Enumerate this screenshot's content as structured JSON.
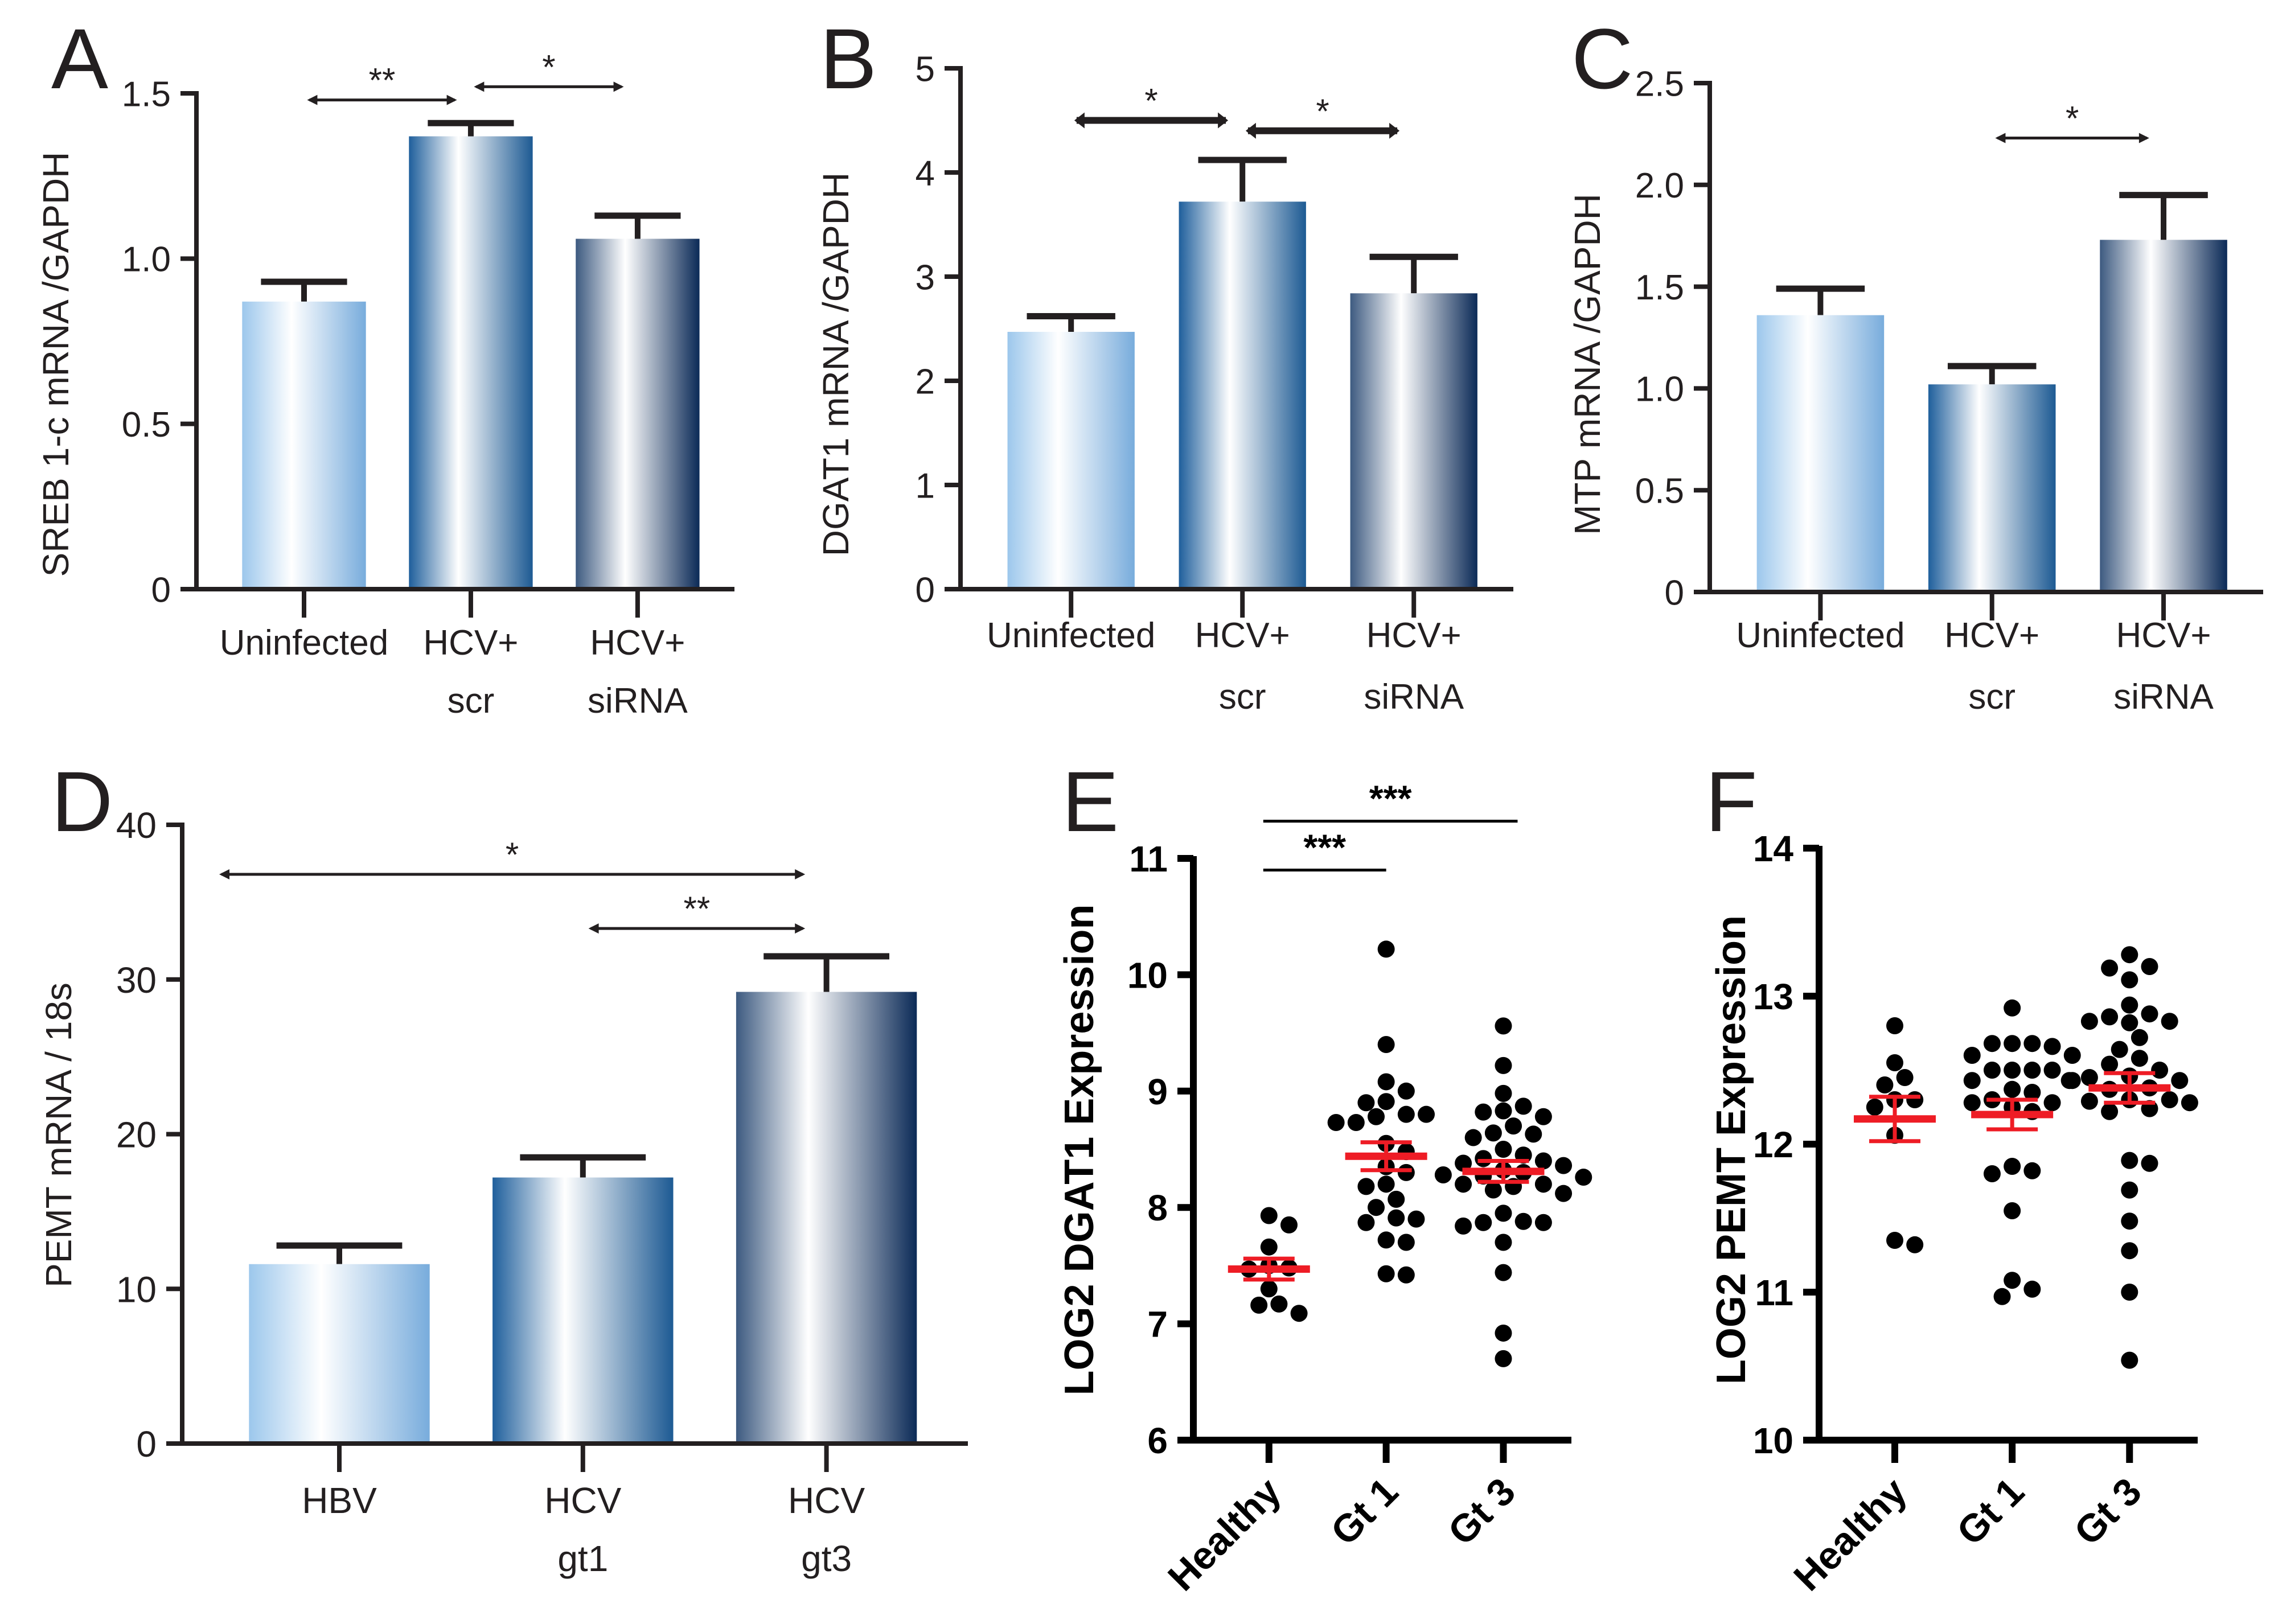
{
  "chart_data": [
    {
      "panel": "A",
      "type": "bar",
      "ylabel": "SREB 1-c mRNA /GAPDH",
      "categories": [
        [
          "Uninfected"
        ],
        [
          "HCV+",
          "scr"
        ],
        [
          "HCV+",
          "siRNA"
        ]
      ],
      "values": [
        0.87,
        1.37,
        1.06
      ],
      "errors": [
        0.06,
        0.04,
        0.07
      ],
      "ylim": [
        0,
        1.5
      ],
      "yticks": [
        0,
        0.5,
        1.0,
        1.5
      ],
      "ytick_labels": [
        "0",
        "0.5",
        "1.0",
        "1.5"
      ],
      "significance": [
        {
          "from": 0,
          "to": 1,
          "label": "**",
          "level": 1.48
        },
        {
          "from": 1,
          "to": 2,
          "label": "*",
          "level": 1.52
        }
      ]
    },
    {
      "panel": "B",
      "type": "bar",
      "ylabel": "DGAT1 mRNA /GAPDH",
      "categories": [
        [
          "Uninfected"
        ],
        [
          "HCV+",
          "scr"
        ],
        [
          "HCV+",
          "siRNA"
        ]
      ],
      "values": [
        2.47,
        3.72,
        2.84
      ],
      "errors": [
        0.15,
        0.4,
        0.35
      ],
      "ylim": [
        0,
        5
      ],
      "yticks": [
        0,
        1,
        2,
        3,
        4,
        5
      ],
      "ytick_labels": [
        "0",
        "1",
        "2",
        "3",
        "4",
        "5"
      ],
      "significance": [
        {
          "from": 0,
          "to": 1,
          "label": "*",
          "level": 4.5
        },
        {
          "from": 1,
          "to": 2,
          "label": "*",
          "level": 4.4
        }
      ]
    },
    {
      "panel": "C",
      "type": "bar",
      "ylabel": "MTP mRNA /GAPDH",
      "categories": [
        [
          "Uninfected"
        ],
        [
          "HCV+",
          "scr"
        ],
        [
          "HCV+",
          "siRNA"
        ]
      ],
      "values": [
        1.36,
        1.02,
        1.73
      ],
      "errors": [
        0.13,
        0.09,
        0.22
      ],
      "ylim": [
        0,
        2.5
      ],
      "yticks": [
        0,
        0.5,
        1.0,
        1.5,
        2.0,
        2.5
      ],
      "ytick_labels": [
        "0",
        "0.5",
        "1.0",
        "1.5",
        "2.0",
        "2.5"
      ],
      "significance": [
        {
          "from": 1,
          "to": 2,
          "label": "*",
          "level": 2.23
        }
      ]
    },
    {
      "panel": "D",
      "type": "bar",
      "ylabel": "PEMT mRNA / 18s",
      "categories": [
        [
          "HBV"
        ],
        [
          "HCV",
          "gt1"
        ],
        [
          "HCV",
          "gt3"
        ]
      ],
      "values": [
        11.6,
        17.2,
        29.2
      ],
      "errors": [
        1.2,
        1.3,
        2.3
      ],
      "ylim": [
        0,
        40
      ],
      "yticks": [
        0,
        10,
        20,
        30,
        40
      ],
      "ytick_labels": [
        "0",
        "10",
        "20",
        "30",
        "40"
      ],
      "significance": [
        {
          "from": 0,
          "to": 2,
          "label": "*",
          "level": 36.8
        },
        {
          "from": 1,
          "to": 2,
          "label": "**",
          "level": 33.3
        }
      ]
    },
    {
      "panel": "E",
      "type": "scatter",
      "ylabel": "LOG2 DGAT1 Expression",
      "categories": [
        "Healthy",
        "Gt 1",
        "Gt 3"
      ],
      "ylim": [
        6,
        11
      ],
      "yticks": [
        6,
        7,
        8,
        9,
        10,
        11
      ],
      "ytick_labels": [
        "6",
        "7",
        "8",
        "9",
        "10",
        "11"
      ],
      "series": [
        {
          "name": "Healthy",
          "mean": 7.47,
          "sem": 0.09,
          "values": [
            7.93,
            7.85,
            7.66,
            7.5,
            7.48,
            7.47,
            7.3,
            7.17,
            7.16,
            7.09
          ]
        },
        {
          "name": "Gt 1",
          "mean": 8.44,
          "sem": 0.12,
          "values": [
            10.22,
            9.4,
            9.08,
            9.0,
            8.91,
            8.9,
            8.8,
            8.8,
            8.78,
            8.73,
            8.73,
            8.55,
            8.48,
            8.35,
            8.3,
            8.2,
            8.18,
            8.07,
            8.0,
            7.91,
            7.9,
            7.87,
            7.72,
            7.7,
            7.43,
            7.42
          ]
        },
        {
          "name": "Gt 3",
          "mean": 8.31,
          "sem": 0.09,
          "values": [
            9.56,
            9.22,
            8.98,
            8.87,
            8.83,
            8.82,
            8.78,
            8.7,
            8.64,
            8.63,
            8.6,
            8.5,
            8.45,
            8.42,
            8.4,
            8.38,
            8.36,
            8.32,
            8.3,
            8.28,
            8.27,
            8.26,
            8.2,
            8.2,
            8.18,
            8.15,
            8.12,
            7.95,
            7.88,
            7.87,
            7.87,
            7.84,
            7.7,
            7.44,
            6.92,
            6.7
          ]
        }
      ],
      "significance": [
        {
          "from": 0,
          "to": 1,
          "label": "***",
          "level": 10.9
        },
        {
          "from": 0,
          "to": 2,
          "label": "***",
          "level": 11.32
        }
      ]
    },
    {
      "panel": "F",
      "type": "scatter",
      "ylabel": "LOG2 PEMT Expression",
      "categories": [
        "Healthy",
        "Gt 1",
        "Gt 3"
      ],
      "ylim": [
        10,
        14
      ],
      "yticks": [
        10,
        11,
        12,
        13,
        14
      ],
      "ytick_labels": [
        "10",
        "11",
        "12",
        "13",
        "14"
      ],
      "series": [
        {
          "name": "Healthy",
          "mean": 12.17,
          "sem": 0.15,
          "values": [
            12.8,
            12.55,
            12.45,
            12.4,
            12.3,
            12.3,
            12.25,
            12.06,
            11.35,
            11.32
          ]
        },
        {
          "name": "Gt 1",
          "mean": 12.2,
          "sem": 0.1,
          "values": [
            12.92,
            12.68,
            12.68,
            12.66,
            12.68,
            12.6,
            12.6,
            12.5,
            12.5,
            12.5,
            12.5,
            12.43,
            12.43,
            12.37,
            12.35,
            12.3,
            12.28,
            12.28,
            12.25,
            12.22,
            11.85,
            11.82,
            11.8,
            11.55,
            11.08,
            11.02,
            10.97
          ]
        },
        {
          "name": "Gt 3",
          "mean": 12.38,
          "sem": 0.1,
          "values": [
            13.28,
            13.2,
            13.19,
            13.11,
            12.94,
            12.88,
            12.86,
            12.83,
            12.83,
            12.82,
            12.72,
            12.64,
            12.58,
            12.54,
            12.5,
            12.46,
            12.45,
            12.43,
            12.43,
            12.38,
            12.37,
            12.3,
            12.3,
            12.29,
            12.28,
            12.24,
            12.22,
            11.89,
            11.87,
            11.69,
            11.48,
            11.28,
            11.0,
            10.54
          ]
        }
      ],
      "significance": []
    }
  ],
  "colors": {
    "bar1": [
      "#9cc7ec",
      "#ffffff",
      "#78acdc"
    ],
    "bar2": [
      "#1f5f9c",
      "#ffffff",
      "#1d5a93"
    ],
    "bar3": [
      "#3d5a80",
      "#ffffff",
      "#0b2a57"
    ],
    "mean_line": "#ee1c25",
    "axis": "#231f20",
    "dot": "#000000"
  }
}
